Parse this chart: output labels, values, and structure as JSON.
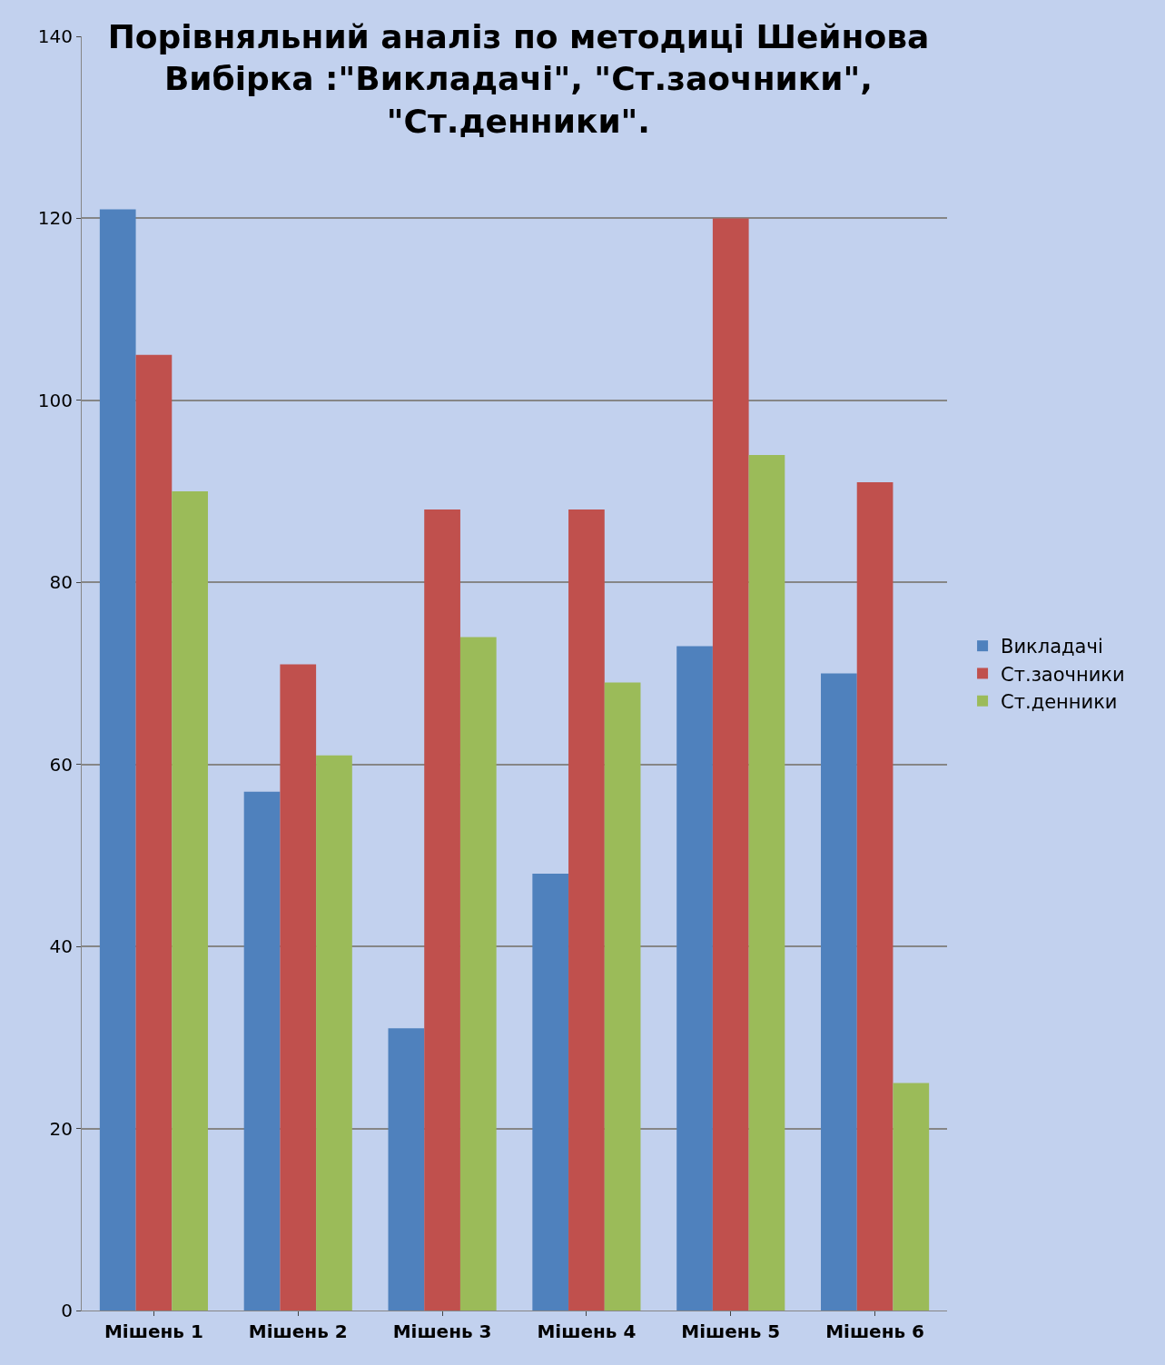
{
  "chart_data": {
    "type": "bar",
    "title": "Порівняльний аналіз по методиці Шейнова\nВибірка :\"Викладачі\", \"Ст.заочники\",\n\"Ст.денники\".",
    "categories": [
      "Мішень 1",
      "Мішень 2",
      "Мішень 3",
      "Мішень 4",
      "Мішень 5",
      "Мішень 6"
    ],
    "series": [
      {
        "name": "Викладачі",
        "color": "#4f81bd",
        "values": [
          121,
          57,
          31,
          48,
          73,
          70
        ]
      },
      {
        "name": "Ст.заочники",
        "color": "#c0504d",
        "values": [
          105,
          71,
          88,
          88,
          120,
          91
        ]
      },
      {
        "name": "Ст.денники",
        "color": "#9bbb59",
        "values": [
          90,
          61,
          74,
          69,
          94,
          25
        ]
      }
    ],
    "ylim": [
      0,
      140
    ],
    "yticks": [
      0,
      20,
      40,
      60,
      80,
      100,
      120,
      140
    ],
    "grid": "y",
    "legend": "right"
  }
}
